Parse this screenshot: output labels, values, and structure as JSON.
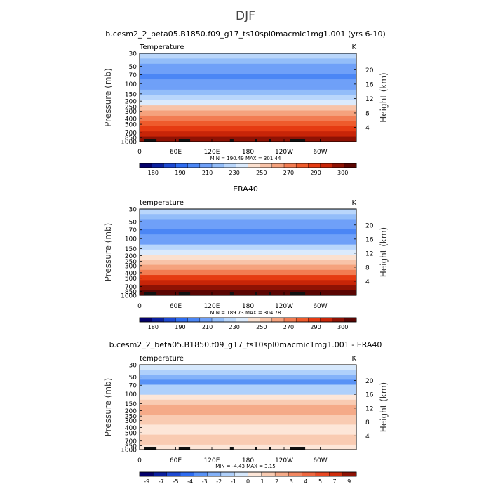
{
  "figure": {
    "title": "DJF"
  },
  "colors": {
    "temp_palette": [
      "#03006b",
      "#0a1f9e",
      "#1d49d2",
      "#2e6cf0",
      "#4b86f5",
      "#6fa0f8",
      "#93bdf9",
      "#b9d6fb",
      "#dbeafc",
      "#fbe0cf",
      "#f8c3a8",
      "#f5a27d",
      "#f27c52",
      "#ee5b2c",
      "#e53b12",
      "#c82508",
      "#8e1204",
      "#5a0502"
    ],
    "diff_palette": [
      "#03006b",
      "#0a1f9e",
      "#1d49d2",
      "#2e6cf0",
      "#5892f6",
      "#84b2f9",
      "#afd0fb",
      "#d6e8fc",
      "#fde6d8",
      "#f9cbb2",
      "#f5aa88",
      "#f28761",
      "#ee6740",
      "#e84823",
      "#cf2d0b",
      "#8e1204"
    ],
    "land": "#111111"
  },
  "chart_data": [
    {
      "type": "contour",
      "title": "b.cesm2_2_beta05.B1850.f09_g17_ts10spl0macmic1mg1.001 (yrs 6-10)",
      "left_label": "Temperature",
      "units": "K",
      "ylabel": "Pressure (mb)",
      "ylabel_right": "Height (km)",
      "pressure_ticks": [
        30,
        50,
        70,
        100,
        150,
        200,
        250,
        300,
        400,
        500,
        700,
        850,
        1000
      ],
      "height_ticks": [
        20,
        16,
        12,
        8,
        4
      ],
      "x_tick_labels": [
        "0",
        "60E",
        "120E",
        "180",
        "120W",
        "60W"
      ],
      "x_tick_lons": [
        0,
        60,
        120,
        180,
        240,
        300
      ],
      "stats": "MIN =   190.49   MAX =   301.44",
      "field_by_level": [
        220,
        217,
        207,
        200,
        196,
        201,
        207,
        219,
        228,
        239,
        253,
        266,
        277,
        283,
        289,
        294,
        298
      ],
      "colorbar_labels": [
        "180",
        "190",
        "210",
        "230",
        "250",
        "270",
        "290",
        "300"
      ],
      "colorbar_levels": [
        175,
        180,
        185,
        190,
        200,
        210,
        220,
        230,
        240,
        250,
        260,
        270,
        280,
        285,
        290,
        295,
        300
      ],
      "palette_key": "temp_palette"
    },
    {
      "type": "contour",
      "title": "ERA40",
      "left_label": "temperature",
      "units": "K",
      "ylabel": "Pressure (mb)",
      "ylabel_right": "Height (km)",
      "pressure_ticks": [
        30,
        50,
        70,
        100,
        150,
        200,
        250,
        300,
        400,
        500,
        700,
        850,
        1000
      ],
      "height_ticks": [
        20,
        16,
        12,
        8,
        4
      ],
      "x_tick_labels": [
        "0",
        "60E",
        "120E",
        "180",
        "120W",
        "60W"
      ],
      "x_tick_lons": [
        0,
        60,
        120,
        180,
        240,
        300
      ],
      "stats": "MIN =   189.73   MAX =   304.78",
      "field_by_level": [
        222,
        216,
        208,
        200,
        197,
        202,
        209,
        221,
        230,
        241,
        255,
        268,
        279,
        285,
        291,
        296,
        300
      ],
      "colorbar_labels": [
        "180",
        "190",
        "210",
        "230",
        "250",
        "270",
        "290",
        "300"
      ],
      "colorbar_levels": [
        175,
        180,
        185,
        190,
        200,
        210,
        220,
        230,
        240,
        250,
        260,
        270,
        280,
        285,
        290,
        295,
        300
      ],
      "palette_key": "temp_palette"
    },
    {
      "type": "contour",
      "title": "b.cesm2_2_beta05.B1850.f09_g17_ts10spl0macmic1mg1.001 - ERA40",
      "left_label": "temperature",
      "units": "K",
      "ylabel": "Pressure (mb)",
      "ylabel_right": "Height (km)",
      "pressure_ticks": [
        30,
        50,
        70,
        100,
        150,
        200,
        250,
        300,
        400,
        500,
        700,
        850,
        1000
      ],
      "height_ticks": [
        20,
        16,
        12,
        8,
        4
      ],
      "x_tick_labels": [
        "0",
        "60E",
        "120E",
        "180",
        "120W",
        "60W"
      ],
      "x_tick_lons": [
        0,
        60,
        120,
        180,
        240,
        300
      ],
      "stats": "MIN =   -4.43   MAX =    3.15",
      "field_by_level": [
        -0.5,
        -1.5,
        -2.5,
        -3.5,
        -2.0,
        -1.2,
        0.5,
        1.2,
        2.0,
        2.5,
        1.5,
        1.0,
        0.5,
        0.8,
        1.0,
        1.5,
        0.5
      ],
      "colorbar_labels": [
        "-9",
        "-7",
        "-5",
        "-4",
        "-3",
        "-2",
        "-1",
        "0",
        "1",
        "2",
        "3",
        "4",
        "5",
        "7",
        "9"
      ],
      "colorbar_levels": [
        -9,
        -7,
        -5,
        -4,
        -3,
        -2,
        -1,
        0,
        1,
        2,
        3,
        4,
        5,
        7,
        9
      ],
      "palette_key": "diff_palette"
    }
  ]
}
